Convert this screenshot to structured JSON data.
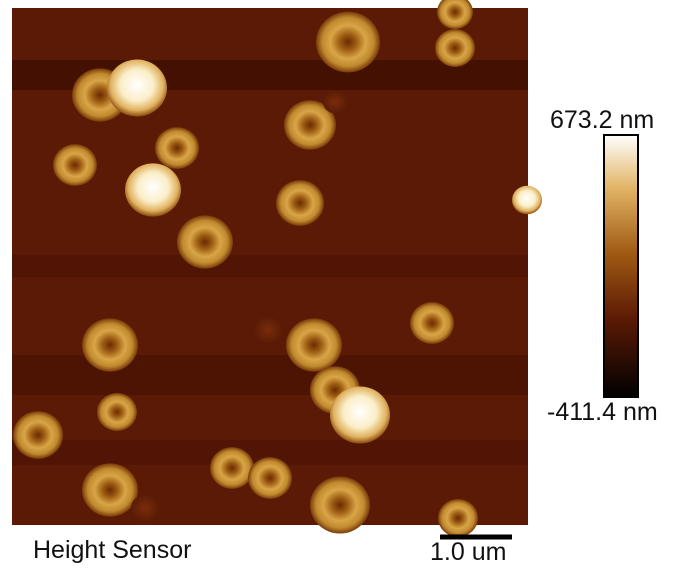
{
  "image": {
    "caption": "Height Sensor",
    "scale_bar": "1.0 um"
  },
  "colorbar": {
    "max_label": "673.2 nm",
    "min_label": "-411.4 nm"
  }
}
